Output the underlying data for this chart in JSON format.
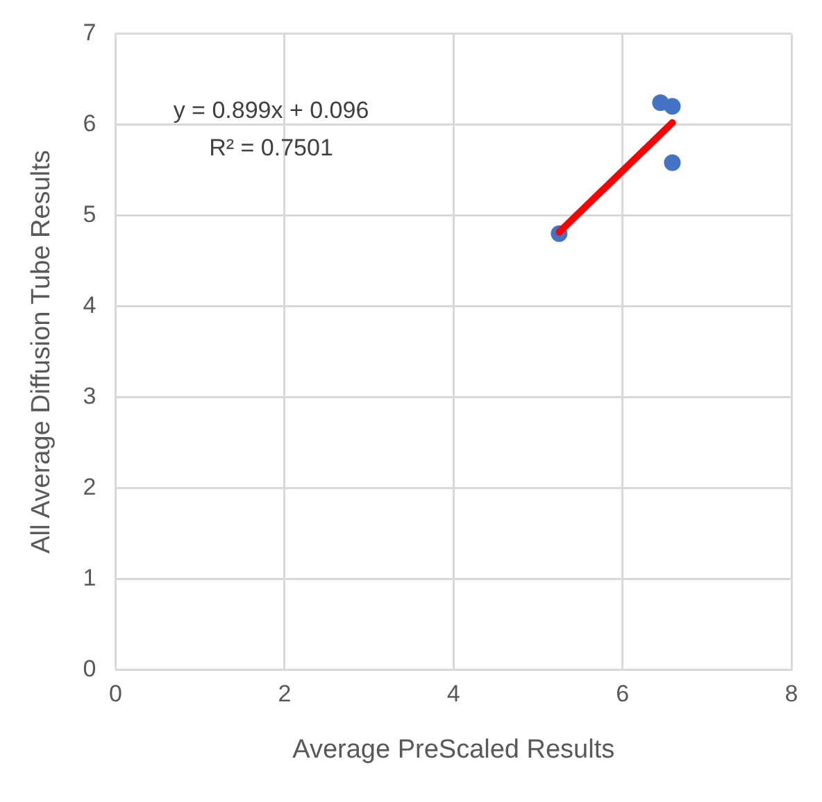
{
  "chart_data": {
    "type": "scatter",
    "xlabel": "Average PreScaled Results",
    "ylabel": "All Average Diffusion Tube Results",
    "x": [
      5.25,
      6.45,
      6.59,
      6.59
    ],
    "values": [
      4.8,
      6.24,
      6.2,
      5.58
    ],
    "color": "#4472c4",
    "marker": "circle",
    "series": [
      {
        "type": "line",
        "x": [
          5.25,
          6.59
        ],
        "values": [
          4.816,
          6.02
        ],
        "color": "#ff0000",
        "marker": "none",
        "line_style": "solid"
      }
    ],
    "xlim": [
      0,
      8
    ],
    "xticks": [
      0,
      2,
      4,
      6,
      8
    ],
    "ylim": [
      0,
      7
    ],
    "yticks": [
      0,
      1,
      2,
      3,
      4,
      5,
      6,
      7
    ],
    "grid": true,
    "legend": false,
    "annotations": [
      "y = 0.899x + 0.096",
      "R² = 0.7501"
    ]
  }
}
